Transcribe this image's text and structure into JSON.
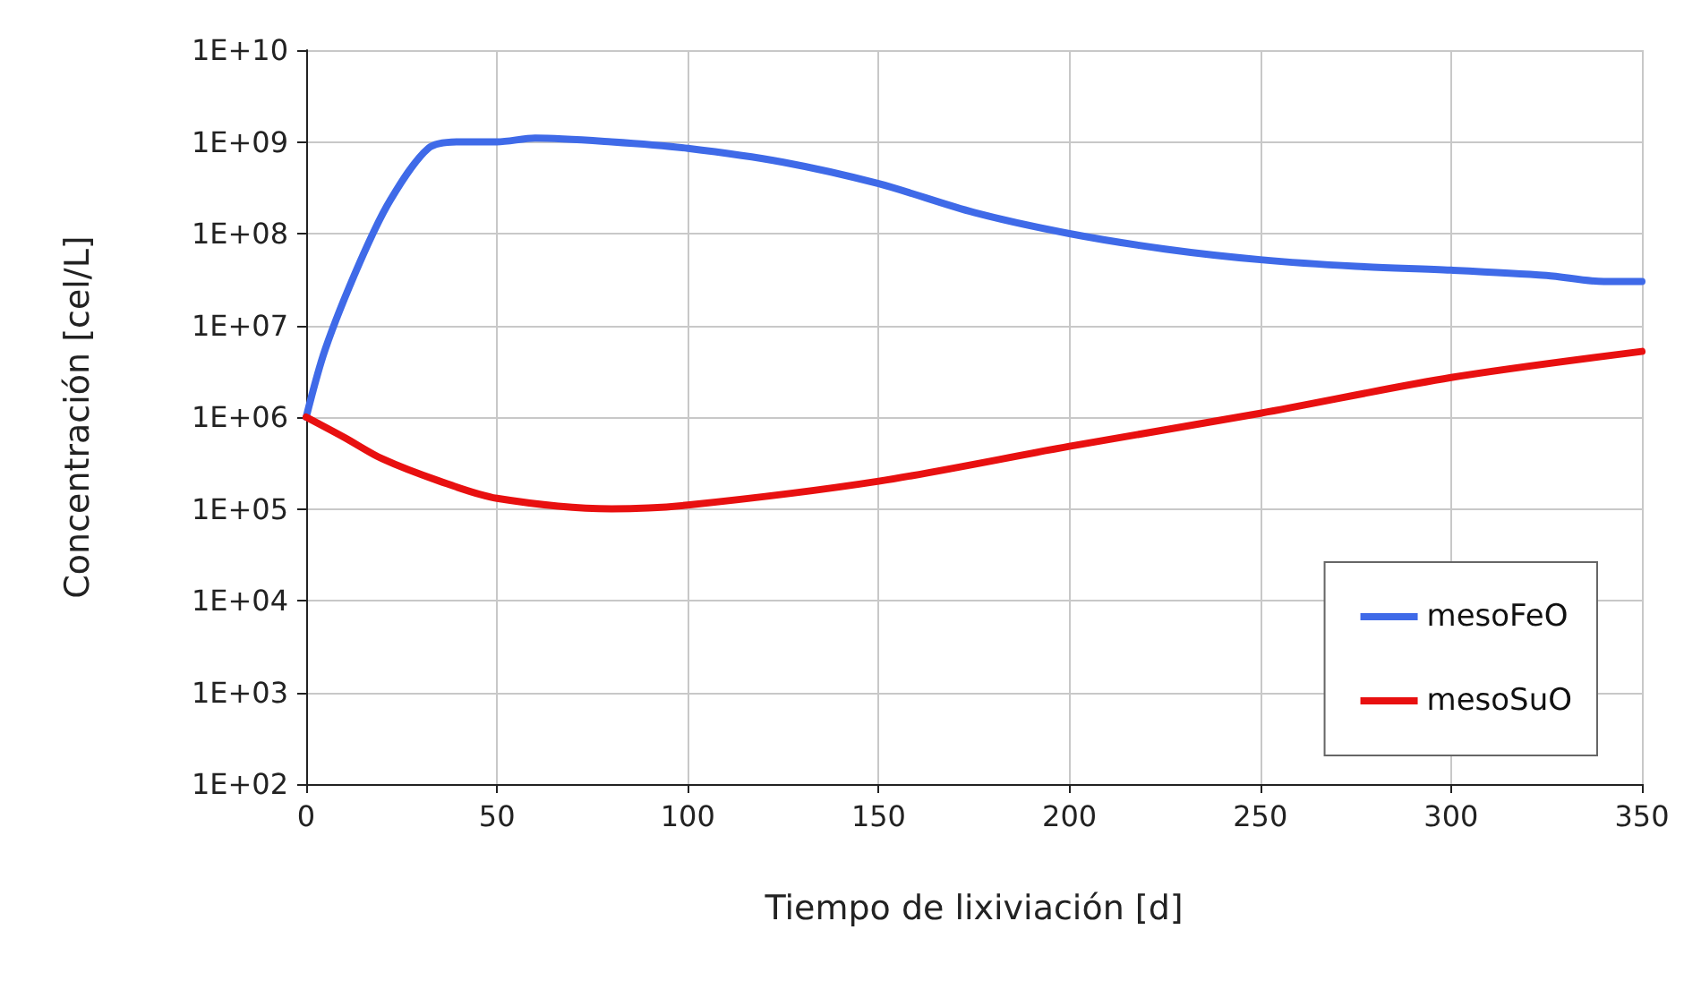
{
  "chart_data": {
    "type": "line",
    "xlabel": "Tiempo de lixiviación [d]",
    "ylabel": "Concentración [cel/L]",
    "log": "y",
    "grid": true,
    "legend": "bottom right",
    "marker": "none",
    "line_style": "solid",
    "xlim": [
      0,
      350
    ],
    "xticks": [
      0,
      50,
      100,
      150,
      200,
      250,
      300,
      350
    ],
    "ylim": [
      100,
      10000000000
    ],
    "yticks": [
      {
        "value": 100,
        "label": "1E+02"
      },
      {
        "value": 1000,
        "label": "1E+03"
      },
      {
        "value": 10000,
        "label": "1E+04"
      },
      {
        "value": 100000,
        "label": "1E+05"
      },
      {
        "value": 1000000,
        "label": "1E+06"
      },
      {
        "value": 10000000,
        "label": "1E+07"
      },
      {
        "value": 100000000,
        "label": "1E+08"
      },
      {
        "value": 1000000000,
        "label": "1E+09"
      },
      {
        "value": 10000000000,
        "label": "1E+10"
      }
    ],
    "series": [
      {
        "name": "mesoFeO",
        "color": "#3f6ae8",
        "x": [
          0,
          5,
          14,
          22,
          32,
          40,
          50,
          60,
          80,
          100,
          125,
          150,
          175,
          200,
          225,
          250,
          275,
          300,
          325,
          340,
          350
        ],
        "values": [
          1000000,
          5500000,
          48000000,
          230000000,
          850000000,
          1000000000,
          1000000000,
          1100000000,
          1000000000,
          850000000,
          600000000,
          350000000,
          170000000,
          100000000,
          68000000,
          52000000,
          44000000,
          40000000,
          35000000,
          30000000,
          30000000
        ]
      },
      {
        "name": "mesoSuO",
        "color": "#e81010",
        "x": [
          0,
          10,
          20,
          35,
          50,
          80,
          100,
          150,
          200,
          250,
          300,
          350
        ],
        "values": [
          1000000,
          600000,
          350000,
          200000,
          130000,
          100000,
          110000,
          200000,
          480000,
          1100000,
          2700000,
          5200000
        ]
      }
    ]
  }
}
